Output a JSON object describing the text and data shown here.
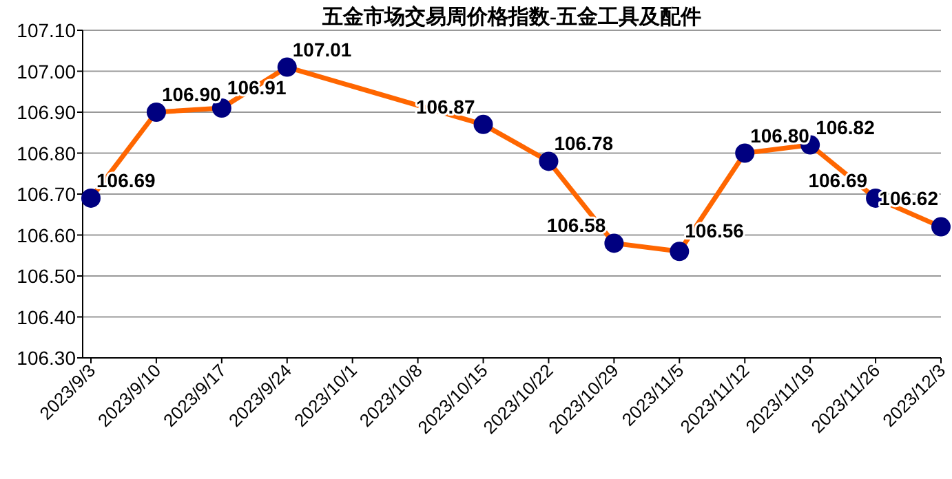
{
  "chart_data": {
    "type": "line",
    "title": "五金市场交易周价格指数-五金工具及配件",
    "categories": [
      "2023/9/3",
      "2023/9/10",
      "2023/9/17",
      "2023/9/24",
      "2023/10/1",
      "2023/10/8",
      "2023/10/15",
      "2023/10/22",
      "2023/10/29",
      "2023/11/5",
      "2023/11/12",
      "2023/11/19",
      "2023/11/26",
      "2023/12/3"
    ],
    "series": [
      {
        "color": "#ff6600",
        "values": [
          106.69,
          106.9,
          106.91,
          107.01,
          null,
          null,
          106.87,
          106.78,
          106.58,
          106.56,
          106.8,
          106.82,
          106.69,
          106.62
        ],
        "value_labels": [
          "106.69",
          "106.90",
          "106.91",
          "107.01",
          null,
          null,
          "106.87",
          "106.78",
          "106.58",
          "106.56",
          "106.80",
          "106.82",
          "106.69",
          "106.62"
        ]
      }
    ],
    "ylim": [
      106.3,
      107.1
    ],
    "yticks": [
      {
        "value": 106.3,
        "label": "106.30"
      },
      {
        "value": 106.4,
        "label": "106.40"
      },
      {
        "value": 106.5,
        "label": "106.50"
      },
      {
        "value": 106.6,
        "label": "106.60"
      },
      {
        "value": 106.7,
        "label": "106.70"
      },
      {
        "value": 106.8,
        "label": "106.80"
      },
      {
        "value": 106.9,
        "label": "106.90"
      },
      {
        "value": 107.0,
        "label": "107.00"
      },
      {
        "value": 107.1,
        "label": "107.10"
      }
    ],
    "grid": "y",
    "marker": "circle",
    "line_style": "solid"
  }
}
